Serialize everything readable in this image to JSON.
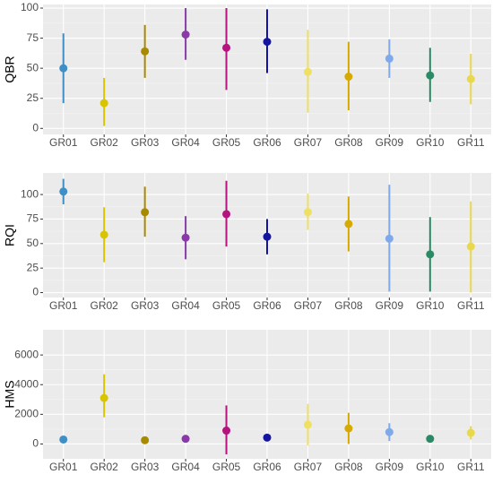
{
  "chart_data": [
    {
      "type": "pointrange",
      "ylabel": "QBR",
      "categories": [
        "GR01",
        "GR02",
        "GR03",
        "GR04",
        "GR05",
        "GR06",
        "GR07",
        "GR08",
        "GR09",
        "GR10",
        "GR11"
      ],
      "values": [
        50,
        21,
        64,
        78,
        67,
        72,
        47,
        43,
        58,
        44,
        41
      ],
      "lower": [
        21,
        2,
        42,
        57,
        32,
        46,
        13,
        15,
        42,
        22,
        20
      ],
      "upper": [
        79,
        42,
        86,
        100,
        100,
        99,
        82,
        72,
        74,
        67,
        62
      ],
      "colors": [
        "#3f8fc7",
        "#d9c400",
        "#a88a00",
        "#8a3aa8",
        "#b5137e",
        "#1414a0",
        "#efe064",
        "#d6aa00",
        "#7fa9ea",
        "#2b8a66",
        "#e9d84c"
      ],
      "ylim": [
        -5,
        103
      ],
      "yticks": [
        0,
        25,
        50,
        75,
        100
      ],
      "grid": true
    },
    {
      "type": "pointrange",
      "ylabel": "RQI",
      "categories": [
        "GR01",
        "GR02",
        "GR03",
        "GR04",
        "GR05",
        "GR06",
        "GR07",
        "GR08",
        "GR09",
        "GR10",
        "GR11"
      ],
      "values": [
        103,
        59,
        82,
        56,
        80,
        57,
        82,
        70,
        55,
        39,
        47
      ],
      "lower": [
        90,
        31,
        57,
        34,
        47,
        39,
        64,
        42,
        1,
        1,
        0
      ],
      "upper": [
        116,
        87,
        108,
        78,
        114,
        75,
        101,
        98,
        110,
        77,
        93
      ],
      "colors": [
        "#3f8fc7",
        "#d9c400",
        "#a88a00",
        "#8a3aa8",
        "#b5137e",
        "#1414a0",
        "#efe064",
        "#d6aa00",
        "#7fa9ea",
        "#2b8a66",
        "#e9d84c"
      ],
      "ylim": [
        -5,
        122
      ],
      "yticks": [
        0,
        25,
        50,
        75,
        100
      ],
      "grid": true
    },
    {
      "type": "pointrange",
      "ylabel": "HMS",
      "categories": [
        "GR01",
        "GR02",
        "GR03",
        "GR04",
        "GR05",
        "GR06",
        "GR07",
        "GR08",
        "GR09",
        "GR10",
        "GR11"
      ],
      "values": [
        300,
        3100,
        250,
        350,
        900,
        430,
        1300,
        1050,
        800,
        350,
        750
      ],
      "lower": [
        100,
        1800,
        50,
        100,
        -700,
        250,
        -100,
        0,
        200,
        150,
        300
      ],
      "upper": [
        500,
        4700,
        450,
        600,
        2600,
        620,
        2700,
        2100,
        1400,
        550,
        1200
      ],
      "colors": [
        "#3f8fc7",
        "#d9c400",
        "#a88a00",
        "#8a3aa8",
        "#b5137e",
        "#1414a0",
        "#efe064",
        "#d6aa00",
        "#7fa9ea",
        "#2b8a66",
        "#e9d84c"
      ],
      "ylim": [
        -1000,
        7700
      ],
      "yticks": [
        0,
        2000,
        4000,
        6000
      ],
      "grid": true
    }
  ]
}
